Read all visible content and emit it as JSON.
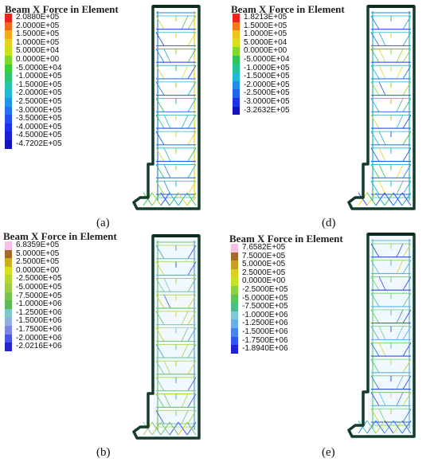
{
  "panels": [
    {
      "id": "a",
      "title": "Beam X Force in Element",
      "caption": "(a)",
      "legend": [
        {
          "label": "2.0880E+05",
          "color": "#e8261e"
        },
        {
          "label": "2.0000E+05",
          "color": "#f06a1a"
        },
        {
          "label": "1.5000E+05",
          "color": "#f5a81c"
        },
        {
          "label": "1.0000E+05",
          "color": "#e4d21e"
        },
        {
          "label": "5.0000E+04",
          "color": "#c9e21c"
        },
        {
          "label": "0.0000E+00",
          "color": "#7fd82a"
        },
        {
          "label": "-5.0000E+04",
          "color": "#3ccc35"
        },
        {
          "label": "-1.0000E+05",
          "color": "#2fc46a"
        },
        {
          "label": "-1.5000E+05",
          "color": "#27c4a5"
        },
        {
          "label": "-2.0000E+05",
          "color": "#22b8d2"
        },
        {
          "label": "-2.5000E+05",
          "color": "#2196e6"
        },
        {
          "label": "-3.0000E+05",
          "color": "#2373ee"
        },
        {
          "label": "-3.5000E+05",
          "color": "#244ff2"
        },
        {
          "label": "-4.0000E+05",
          "color": "#1f30ea"
        },
        {
          "label": "-4.5000E+05",
          "color": "#1a1fd6"
        },
        {
          "label": "-4.7202E+05",
          "color": "#1414b8"
        }
      ]
    },
    {
      "id": "d",
      "title": "Beam X Force in Element",
      "caption": "(d)",
      "legend": [
        {
          "label": "1.8213E+05",
          "color": "#e8261e"
        },
        {
          "label": "1.5000E+05",
          "color": "#f07a1a"
        },
        {
          "label": "1.0000E+05",
          "color": "#f0c41e"
        },
        {
          "label": "5.0000E+04",
          "color": "#d8e01c"
        },
        {
          "label": "0.0000E+00",
          "color": "#7fd82a"
        },
        {
          "label": "-5.0000E+04",
          "color": "#2fc45a"
        },
        {
          "label": "-1.0000E+05",
          "color": "#27c49c"
        },
        {
          "label": "-1.5000E+05",
          "color": "#22b8d8"
        },
        {
          "label": "-2.0000E+05",
          "color": "#218ee8"
        },
        {
          "label": "-2.5000E+05",
          "color": "#2462f0"
        },
        {
          "label": "-3.0000E+05",
          "color": "#1f34e6"
        },
        {
          "label": "-3.2632E+05",
          "color": "#1414b8"
        }
      ]
    },
    {
      "id": "b",
      "title": "Beam X Force in Element",
      "caption": "(b)",
      "legend": [
        {
          "label": "6.8359E+05",
          "color": "#f4c0e6"
        },
        {
          "label": "5.0000E+05",
          "color": "#a36a2a"
        },
        {
          "label": "2.5000E+05",
          "color": "#c8b020"
        },
        {
          "label": "0.0000E+00",
          "color": "#d8e020"
        },
        {
          "label": "-2.5000E+05",
          "color": "#b4d830"
        },
        {
          "label": "-5.0000E+05",
          "color": "#9fcc46"
        },
        {
          "label": "-7.5000E+05",
          "color": "#78c24c"
        },
        {
          "label": "-1.0000E+06",
          "color": "#5cb85a"
        },
        {
          "label": "-1.2500E+06",
          "color": "#7ec8c8"
        },
        {
          "label": "-1.5000E+06",
          "color": "#8fb0dc"
        },
        {
          "label": "-1.7500E+06",
          "color": "#7e86e4"
        },
        {
          "label": "-2.0000E+06",
          "color": "#4b56e6"
        },
        {
          "label": "-2.0216E+06",
          "color": "#2424c8"
        }
      ]
    },
    {
      "id": "e",
      "title": "Beam X Force in Element",
      "caption": "(e)",
      "legend": [
        {
          "label": "7.6582E+05",
          "color": "#f4c0e6"
        },
        {
          "label": "7.5000E+05",
          "color": "#a36a2a"
        },
        {
          "label": "5.0000E+05",
          "color": "#c8a020"
        },
        {
          "label": "2.5000E+05",
          "color": "#d8d020"
        },
        {
          "label": "0.0000E+00",
          "color": "#c8e020"
        },
        {
          "label": "-2.5000E+05",
          "color": "#8cd040"
        },
        {
          "label": "-5.0000E+05",
          "color": "#5cc45a"
        },
        {
          "label": "-7.5000E+05",
          "color": "#4cbc88"
        },
        {
          "label": "-1.0000E+06",
          "color": "#7ec8d8"
        },
        {
          "label": "-1.2500E+06",
          "color": "#6ab0e6"
        },
        {
          "label": "-1.5000E+06",
          "color": "#4a86ea"
        },
        {
          "label": "-1.7500E+06",
          "color": "#3356ee"
        },
        {
          "label": "-1.8940E+06",
          "color": "#2020d8"
        }
      ]
    }
  ]
}
